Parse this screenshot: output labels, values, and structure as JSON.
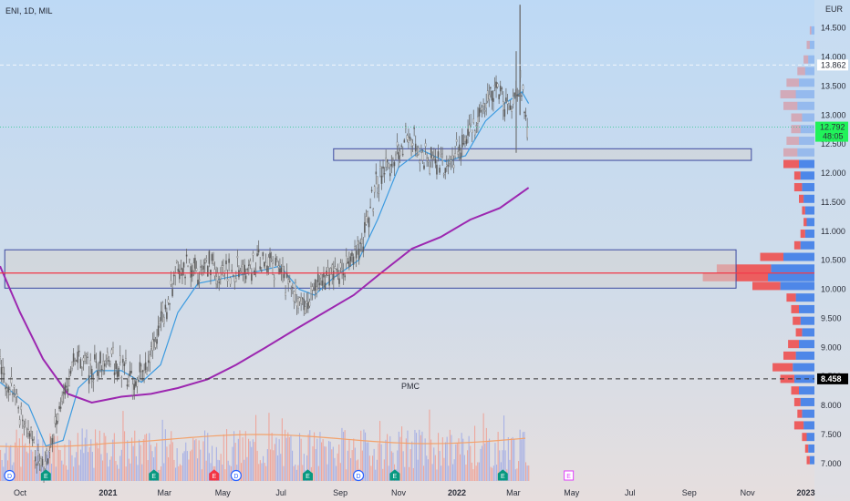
{
  "chart_data": {
    "type": "candlestick",
    "title": "ENI, 1D, MIL",
    "currency": "EUR",
    "price_axis": {
      "ticks": [
        "14.500",
        "14.000",
        "13.500",
        "13.000",
        "12.500",
        "12.000",
        "11.500",
        "11.000",
        "10.500",
        "10.000",
        "9.500",
        "9.000",
        "8.500",
        "8.000",
        "7.500",
        "7.000"
      ],
      "range": [
        6.7,
        14.95
      ],
      "scale": "linear"
    },
    "time_axis": {
      "ticks": [
        "Oct",
        "2021",
        "Mar",
        "May",
        "Jul",
        "Sep",
        "Nov",
        "2022",
        "Mar",
        "May",
        "Jul",
        "Sep",
        "Nov",
        "2023"
      ],
      "range": [
        "2020-09-10",
        "2023-01-10"
      ]
    },
    "price_labels": {
      "previous_high": {
        "value": "13.862",
        "price": 13.862
      },
      "last": {
        "value": "12.792",
        "countdown": "48:05",
        "price": 12.792,
        "color": "#21f25a"
      },
      "marked_level": {
        "value": "8.458",
        "price": 8.458
      }
    },
    "annotations": {
      "pmc_label": "PMC",
      "pmc_price": 8.458,
      "red_line_price": 10.28,
      "zones": [
        {
          "top": 10.68,
          "bottom": 10.02,
          "from": "2020-09-15",
          "to": "2022-10-20"
        },
        {
          "top": 12.42,
          "bottom": 12.22,
          "from": "2021-08-25",
          "to": "2022-11-05"
        }
      ]
    },
    "event_markers": [
      {
        "letter": "D",
        "date": "2020-09-20",
        "color": "#2962ff",
        "shape": "circle"
      },
      {
        "letter": "E",
        "date": "2020-10-28",
        "color": "#089981",
        "shape": "pentagon"
      },
      {
        "letter": "E",
        "date": "2021-02-18",
        "color": "#089981",
        "shape": "pentagon"
      },
      {
        "letter": "E",
        "date": "2021-04-22",
        "color": "#f23645",
        "shape": "pentagon"
      },
      {
        "letter": "D",
        "date": "2021-05-15",
        "color": "#2962ff",
        "shape": "circle"
      },
      {
        "letter": "E",
        "date": "2021-07-29",
        "color": "#089981",
        "shape": "pentagon"
      },
      {
        "letter": "D",
        "date": "2021-09-20",
        "color": "#2962ff",
        "shape": "circle"
      },
      {
        "letter": "E",
        "date": "2021-10-28",
        "color": "#089981",
        "shape": "pentagon"
      },
      {
        "letter": "E",
        "date": "2022-02-18",
        "color": "#089981",
        "shape": "pentagon"
      },
      {
        "letter": "E",
        "date": "2022-04-28",
        "color": "#e040fb",
        "shape": "square"
      }
    ],
    "price_series": [
      {
        "date": "2020-09-10",
        "price": 8.6
      },
      {
        "date": "2020-09-25",
        "price": 8.2
      },
      {
        "date": "2020-10-10",
        "price": 7.5
      },
      {
        "date": "2020-10-25",
        "price": 6.9
      },
      {
        "date": "2020-11-05",
        "price": 7.4
      },
      {
        "date": "2020-11-15",
        "price": 8.3
      },
      {
        "date": "2020-11-30",
        "price": 8.8
      },
      {
        "date": "2020-12-15",
        "price": 8.6
      },
      {
        "date": "2021-01-05",
        "price": 8.8
      },
      {
        "date": "2021-01-20",
        "price": 8.6
      },
      {
        "date": "2021-01-29",
        "price": 8.3
      },
      {
        "date": "2021-02-15",
        "price": 8.9
      },
      {
        "date": "2021-03-05",
        "price": 9.8
      },
      {
        "date": "2021-03-15",
        "price": 10.4
      },
      {
        "date": "2021-03-31",
        "price": 10.3
      },
      {
        "date": "2021-04-15",
        "price": 10.4
      },
      {
        "date": "2021-04-30",
        "price": 10.2
      },
      {
        "date": "2021-05-15",
        "price": 10.3
      },
      {
        "date": "2021-05-31",
        "price": 10.4
      },
      {
        "date": "2021-06-15",
        "price": 10.5
      },
      {
        "date": "2021-06-30",
        "price": 10.3
      },
      {
        "date": "2021-07-15",
        "price": 9.9
      },
      {
        "date": "2021-07-25",
        "price": 9.6
      },
      {
        "date": "2021-08-10",
        "price": 10.1
      },
      {
        "date": "2021-08-25",
        "price": 10.3
      },
      {
        "date": "2021-09-10",
        "price": 10.4
      },
      {
        "date": "2021-09-25",
        "price": 10.9
      },
      {
        "date": "2021-10-10",
        "price": 11.9
      },
      {
        "date": "2021-10-25",
        "price": 12.2
      },
      {
        "date": "2021-11-10",
        "price": 12.7
      },
      {
        "date": "2021-11-25",
        "price": 12.3
      },
      {
        "date": "2021-12-10",
        "price": 12.1
      },
      {
        "date": "2021-12-25",
        "price": 12.2
      },
      {
        "date": "2022-01-10",
        "price": 12.6
      },
      {
        "date": "2022-01-25",
        "price": 13.0
      },
      {
        "date": "2022-02-10",
        "price": 13.5
      },
      {
        "date": "2022-02-25",
        "price": 13.1
      },
      {
        "date": "2022-03-05",
        "price": 13.3
      },
      {
        "date": "2022-03-09",
        "price": 13.6
      },
      {
        "date": "2022-03-14",
        "price": 12.9
      },
      {
        "date": "2022-03-17",
        "price": 12.79
      }
    ],
    "moving_averages": [
      {
        "name": "",
        "color": "#3d9be0",
        "points": [
          {
            "date": "2020-09-10",
            "price": 8.4
          },
          {
            "date": "2020-10-10",
            "price": 8.0
          },
          {
            "date": "2020-10-28",
            "price": 7.3
          },
          {
            "date": "2020-11-15",
            "price": 7.4
          },
          {
            "date": "2020-12-01",
            "price": 8.3
          },
          {
            "date": "2020-12-20",
            "price": 8.6
          },
          {
            "date": "2021-01-15",
            "price": 8.6
          },
          {
            "date": "2021-02-05",
            "price": 8.4
          },
          {
            "date": "2021-02-25",
            "price": 8.7
          },
          {
            "date": "2021-03-15",
            "price": 9.6
          },
          {
            "date": "2021-04-05",
            "price": 10.1
          },
          {
            "date": "2021-05-05",
            "price": 10.2
          },
          {
            "date": "2021-06-05",
            "price": 10.3
          },
          {
            "date": "2021-06-30",
            "price": 10.4
          },
          {
            "date": "2021-07-20",
            "price": 10.0
          },
          {
            "date": "2021-08-05",
            "price": 9.9
          },
          {
            "date": "2021-08-25",
            "price": 10.2
          },
          {
            "date": "2021-09-20",
            "price": 10.5
          },
          {
            "date": "2021-10-10",
            "price": 11.2
          },
          {
            "date": "2021-11-01",
            "price": 12.1
          },
          {
            "date": "2021-11-25",
            "price": 12.4
          },
          {
            "date": "2021-12-20",
            "price": 12.2
          },
          {
            "date": "2022-01-10",
            "price": 12.3
          },
          {
            "date": "2022-01-31",
            "price": 12.9
          },
          {
            "date": "2022-02-20",
            "price": 13.2
          },
          {
            "date": "2022-03-10",
            "price": 13.4
          },
          {
            "date": "2022-03-17",
            "price": 13.2
          }
        ]
      },
      {
        "name": "",
        "color": "#9c27b0",
        "points": [
          {
            "date": "2020-09-10",
            "price": 10.4
          },
          {
            "date": "2020-10-01",
            "price": 9.6
          },
          {
            "date": "2020-10-25",
            "price": 8.8
          },
          {
            "date": "2020-11-20",
            "price": 8.2
          },
          {
            "date": "2020-12-15",
            "price": 8.05
          },
          {
            "date": "2021-01-15",
            "price": 8.15
          },
          {
            "date": "2021-02-15",
            "price": 8.2
          },
          {
            "date": "2021-03-15",
            "price": 8.3
          },
          {
            "date": "2021-04-15",
            "price": 8.45
          },
          {
            "date": "2021-05-15",
            "price": 8.7
          },
          {
            "date": "2021-06-15",
            "price": 9.0
          },
          {
            "date": "2021-07-15",
            "price": 9.3
          },
          {
            "date": "2021-08-15",
            "price": 9.6
          },
          {
            "date": "2021-09-15",
            "price": 9.9
          },
          {
            "date": "2021-10-15",
            "price": 10.3
          },
          {
            "date": "2021-11-15",
            "price": 10.7
          },
          {
            "date": "2021-12-15",
            "price": 10.9
          },
          {
            "date": "2022-01-15",
            "price": 11.2
          },
          {
            "date": "2022-02-15",
            "price": 11.4
          },
          {
            "date": "2022-03-17",
            "price": 11.75
          }
        ]
      }
    ],
    "volume_profile": [
      {
        "price": 14.45,
        "buy": 0.02,
        "sell": 0.01
      },
      {
        "price": 14.2,
        "buy": 0.03,
        "sell": 0.02
      },
      {
        "price": 13.95,
        "buy": 0.04,
        "sell": 0.03
      },
      {
        "price": 13.75,
        "buy": 0.06,
        "sell": 0.05
      },
      {
        "price": 13.55,
        "buy": 0.1,
        "sell": 0.08
      },
      {
        "price": 13.35,
        "buy": 0.12,
        "sell": 0.1
      },
      {
        "price": 13.15,
        "buy": 0.11,
        "sell": 0.09
      },
      {
        "price": 12.95,
        "buy": 0.08,
        "sell": 0.07
      },
      {
        "price": 12.75,
        "buy": 0.09,
        "sell": 0.06
      },
      {
        "price": 12.55,
        "buy": 0.1,
        "sell": 0.08
      },
      {
        "price": 12.35,
        "buy": 0.11,
        "sell": 0.09
      },
      {
        "price": 12.15,
        "buy": 0.1,
        "sell": 0.1
      },
      {
        "price": 11.95,
        "buy": 0.09,
        "sell": 0.04
      },
      {
        "price": 11.75,
        "buy": 0.08,
        "sell": 0.05
      },
      {
        "price": 11.55,
        "buy": 0.07,
        "sell": 0.03
      },
      {
        "price": 11.35,
        "buy": 0.06,
        "sell": 0.02
      },
      {
        "price": 11.15,
        "buy": 0.05,
        "sell": 0.02
      },
      {
        "price": 10.95,
        "buy": 0.06,
        "sell": 0.03
      },
      {
        "price": 10.75,
        "buy": 0.09,
        "sell": 0.04
      },
      {
        "price": 10.55,
        "buy": 0.2,
        "sell": 0.15
      },
      {
        "price": 10.35,
        "buy": 0.28,
        "sell": 0.35
      },
      {
        "price": 10.2,
        "buy": 0.3,
        "sell": 0.42
      },
      {
        "price": 10.05,
        "buy": 0.22,
        "sell": 0.18
      },
      {
        "price": 9.85,
        "buy": 0.12,
        "sell": 0.06
      },
      {
        "price": 9.65,
        "buy": 0.1,
        "sell": 0.05
      },
      {
        "price": 9.45,
        "buy": 0.09,
        "sell": 0.05
      },
      {
        "price": 9.25,
        "buy": 0.08,
        "sell": 0.04
      },
      {
        "price": 9.05,
        "buy": 0.1,
        "sell": 0.07
      },
      {
        "price": 8.85,
        "buy": 0.12,
        "sell": 0.08
      },
      {
        "price": 8.65,
        "buy": 0.14,
        "sell": 0.13
      },
      {
        "price": 8.45,
        "buy": 0.13,
        "sell": 0.09
      },
      {
        "price": 8.25,
        "buy": 0.1,
        "sell": 0.05
      },
      {
        "price": 8.05,
        "buy": 0.09,
        "sell": 0.04
      },
      {
        "price": 7.85,
        "buy": 0.08,
        "sell": 0.03
      },
      {
        "price": 7.65,
        "buy": 0.07,
        "sell": 0.06
      },
      {
        "price": 7.45,
        "buy": 0.05,
        "sell": 0.03
      },
      {
        "price": 7.25,
        "buy": 0.04,
        "sell": 0.02
      },
      {
        "price": 7.05,
        "buy": 0.03,
        "sell": 0.02
      }
    ],
    "colors": {
      "candle": "#6b6b6b",
      "zone_fill": "#d3d3d3",
      "zone_border": "#3d4aa0",
      "red_line": "#f23645",
      "profile_buy": "#3f7de8",
      "profile_sell": "#ee5050",
      "volume_up": "#9aa6e6",
      "volume_down": "#f09a8c",
      "volume_ma": "#f3a26b"
    }
  }
}
